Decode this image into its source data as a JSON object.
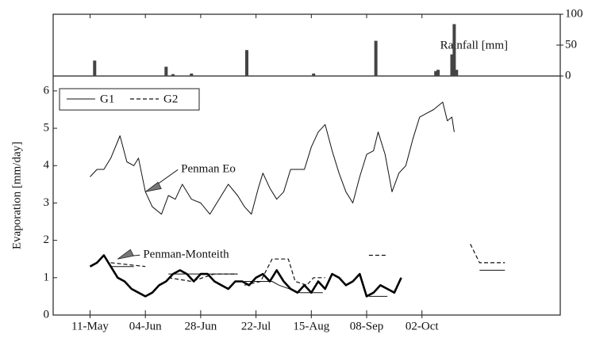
{
  "chart_data": {
    "type": "line",
    "ylabel": "Evaporation [mm/day]",
    "y2label": "Rainfall [mm]",
    "xlim": [
      115,
      335
    ],
    "xticks": [
      {
        "value": 131,
        "label": "11-May"
      },
      {
        "value": 155,
        "label": "04-Jun"
      },
      {
        "value": 179,
        "label": "28-Jun"
      },
      {
        "value": 203,
        "label": "22-Jul"
      },
      {
        "value": 227,
        "label": "15-Aug"
      },
      {
        "value": 251,
        "label": "08-Sep"
      },
      {
        "value": 275,
        "label": "02-Oct"
      }
    ],
    "ylim": [
      0,
      6.4
    ],
    "yticks": [
      0,
      1,
      2,
      3,
      4,
      5,
      6
    ],
    "y2lim": [
      0,
      100
    ],
    "y2ticks": [
      0,
      50,
      100
    ],
    "legend": "upper left",
    "series": [
      {
        "name": "G1",
        "color": "#111111",
        "dash": "solid",
        "width": 1,
        "legend": true,
        "x": [
          140,
          150,
          151,
          165,
          180,
          195,
          196,
          198,
          210,
          213,
          222,
          232,
          233,
          252,
          260,
          261,
          300,
          311
        ],
        "values": [
          1.3,
          1.3,
          null,
          1.1,
          1.1,
          1.1,
          null,
          0.9,
          0.9,
          0.8,
          0.6,
          0.6,
          null,
          0.5,
          0.5,
          null,
          1.2,
          1.2
        ]
      },
      {
        "name": "G2",
        "color": "#111111",
        "dash": "dashed",
        "width": 1.2,
        "legend": true,
        "x": [
          140,
          155,
          156,
          165,
          175,
          185,
          195,
          196,
          198,
          205,
          210,
          217,
          220,
          225,
          228,
          233,
          234,
          252,
          260,
          261,
          296,
          300,
          311
        ],
        "values": [
          1.4,
          1.3,
          null,
          1.0,
          0.9,
          1.1,
          1.1,
          null,
          0.8,
          0.9,
          1.5,
          1.5,
          0.9,
          0.8,
          1.0,
          1.0,
          null,
          1.6,
          1.6,
          null,
          1.9,
          1.4,
          1.4
        ]
      },
      {
        "color": "#111111",
        "dash": "solid",
        "width": 1,
        "legend": false,
        "x": [
          131,
          134,
          137,
          140,
          144,
          147,
          150,
          152,
          155,
          158,
          162,
          165,
          168,
          171,
          175,
          179,
          183,
          187,
          191,
          195,
          198,
          201,
          204,
          206,
          209,
          212,
          215,
          218,
          221,
          224,
          227,
          230,
          233,
          236,
          239,
          242,
          245,
          248,
          251,
          254,
          256,
          259,
          262,
          265,
          268,
          271,
          274,
          277,
          280,
          284,
          286,
          288,
          289
        ],
        "values": [
          3.7,
          3.9,
          3.9,
          4.2,
          4.8,
          4.1,
          4.0,
          4.2,
          3.3,
          2.9,
          2.7,
          3.2,
          3.1,
          3.5,
          3.1,
          3.0,
          2.7,
          3.1,
          3.5,
          3.2,
          2.9,
          2.7,
          3.4,
          3.8,
          3.4,
          3.1,
          3.3,
          3.9,
          3.9,
          3.9,
          4.5,
          4.9,
          5.1,
          4.4,
          3.8,
          3.3,
          3.0,
          3.7,
          4.3,
          4.4,
          4.9,
          4.3,
          3.3,
          3.8,
          4.0,
          4.7,
          5.3,
          5.4,
          5.5,
          5.7,
          5.2,
          5.3,
          4.9
        ]
      },
      {
        "color": "#000000",
        "dash": "solid",
        "width": 2.6,
        "legend": false,
        "x": [
          131,
          134,
          137,
          140,
          143,
          146,
          149,
          152,
          155,
          158,
          161,
          164,
          167,
          170,
          173,
          176,
          179,
          182,
          185,
          188,
          191,
          194,
          197,
          200,
          203,
          206,
          209,
          212,
          215,
          218,
          221,
          224,
          227,
          230,
          233,
          236,
          239,
          242,
          245,
          248,
          251,
          254,
          257,
          260,
          263,
          266
        ],
        "values": [
          1.3,
          1.4,
          1.6,
          1.3,
          1.0,
          0.9,
          0.7,
          0.6,
          0.5,
          0.6,
          0.8,
          0.9,
          1.1,
          1.2,
          1.1,
          0.9,
          1.1,
          1.1,
          0.9,
          0.8,
          0.7,
          0.9,
          0.9,
          0.8,
          1.0,
          1.1,
          0.9,
          1.2,
          0.9,
          0.7,
          0.6,
          0.8,
          0.6,
          0.9,
          0.7,
          1.1,
          1.0,
          0.8,
          0.9,
          1.1,
          0.5,
          0.6,
          0.8,
          0.7,
          0.6,
          1.0
        ]
      },
      {
        "type": "bar",
        "axis": "y2",
        "color": "#444444",
        "x": [
          133,
          164,
          167,
          175,
          199,
          228,
          255,
          281,
          282,
          288,
          289,
          290
        ],
        "values": [
          25,
          15,
          3,
          4,
          42,
          4,
          57,
          8,
          10,
          35,
          84,
          10
        ]
      }
    ],
    "annotations": [
      {
        "text": "Penman Eo",
        "x": 155,
        "y": 3.3
      },
      {
        "text": "Penman-Monteith",
        "x": 143,
        "y": 1.5
      }
    ]
  }
}
